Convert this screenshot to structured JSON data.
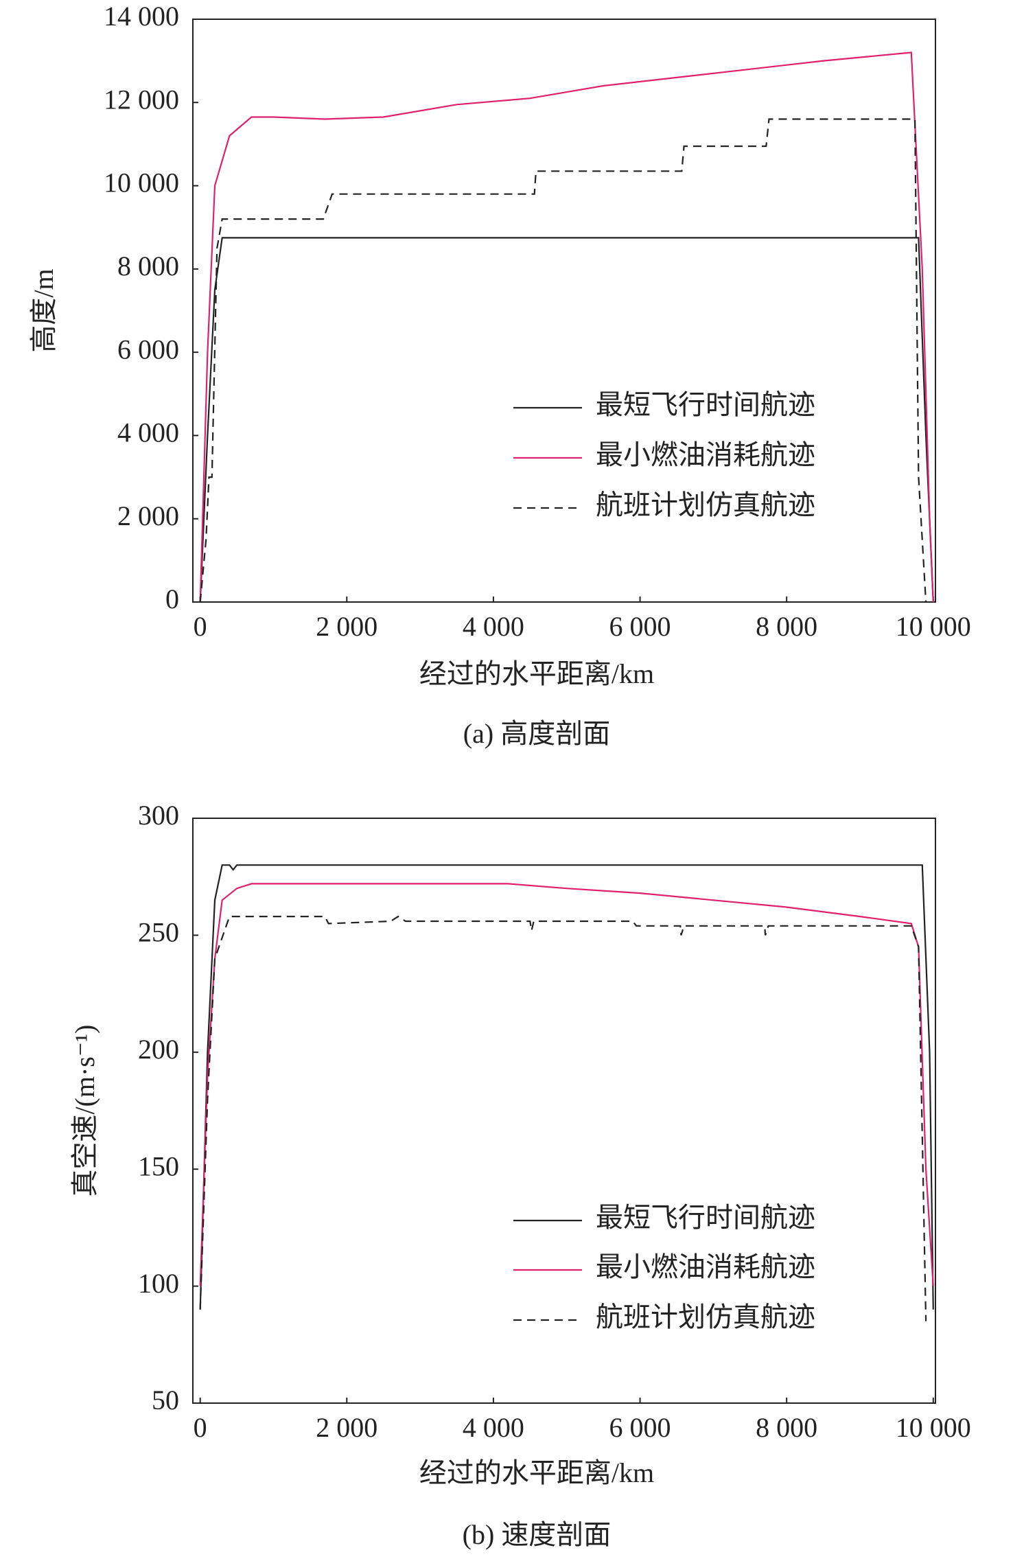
{
  "chart_data": [
    {
      "type": "line",
      "caption": "(a) 高度剖面",
      "x_label": "经过的水平距离/km",
      "y_label": "高度/m",
      "xlim": [
        -100,
        10030
      ],
      "ylim": [
        0,
        14000
      ],
      "xticks": [
        0,
        {
          "value": 2000,
          "label": "2 000"
        },
        {
          "value": 4000,
          "label": "4 000"
        },
        {
          "value": 6000,
          "label": "6 000"
        },
        {
          "value": 8000,
          "label": "8 000"
        },
        {
          "value": 10000,
          "label": "10 000"
        }
      ],
      "yticks": [
        0,
        {
          "value": 2000,
          "label": "2 000"
        },
        {
          "value": 4000,
          "label": "4 000"
        },
        {
          "value": 6000,
          "label": "6 000"
        },
        {
          "value": 8000,
          "label": "8 000"
        },
        {
          "value": 10000,
          "label": "10 000"
        },
        {
          "value": 12000,
          "label": "12 000"
        },
        {
          "value": 14000,
          "label": "14 000"
        }
      ],
      "legend": "lower right",
      "series": [
        {
          "name": "最短飞行时间航迹",
          "color": "#222222",
          "linestyle": "solid",
          "x": [
            0,
            100,
            200,
            300,
            9800,
            9900,
            10000
          ],
          "values": [
            0,
            4000,
            7500,
            8750,
            8750,
            4000,
            0
          ]
        },
        {
          "name": "最小燃油消耗航迹",
          "color": "#e0206a",
          "linestyle": "solid",
          "x": [
            0,
            100,
            200,
            400,
            700,
            1000,
            1700,
            2500,
            3500,
            4500,
            5500,
            6500,
            7500,
            8500,
            9700,
            9850,
            9950,
            10000
          ],
          "values": [
            0,
            6000,
            10000,
            11200,
            11650,
            11650,
            11600,
            11650,
            11950,
            12100,
            12400,
            12600,
            12800,
            13000,
            13200,
            8000,
            2000,
            0
          ]
        },
        {
          "name": "航班计划仿真航迹",
          "color": "#222222",
          "linestyle": "dashed",
          "x": [
            0,
            80,
            120,
            160,
            230,
            300,
            1680,
            1800,
            4560,
            4580,
            6570,
            6600,
            7720,
            7760,
            9750,
            9800,
            9900
          ],
          "values": [
            0,
            1500,
            3000,
            3000,
            8500,
            9200,
            9200,
            9800,
            9800,
            10350,
            10350,
            10950,
            10950,
            11600,
            11600,
            3000,
            0
          ]
        }
      ]
    },
    {
      "type": "line",
      "caption": "(b) 速度剖面",
      "x_label": "经过的水平距离/km",
      "y_label": "真空速/(m·s⁻¹)",
      "xlim": [
        -100,
        10030
      ],
      "ylim": [
        50,
        300
      ],
      "xticks": [
        0,
        {
          "value": 2000,
          "label": "2 000"
        },
        {
          "value": 4000,
          "label": "4 000"
        },
        {
          "value": 6000,
          "label": "6 000"
        },
        {
          "value": 8000,
          "label": "8 000"
        },
        {
          "value": 10000,
          "label": "10 000"
        }
      ],
      "yticks": [
        50,
        100,
        150,
        200,
        250,
        300
      ],
      "legend": "lower right",
      "series": [
        {
          "name": "最短飞行时间航迹",
          "color": "#222222",
          "linestyle": "solid",
          "x": [
            0,
            100,
            200,
            300,
            400,
            450,
            500,
            9850,
            9950,
            10000
          ],
          "values": [
            90,
            200,
            265,
            280,
            280,
            278,
            280,
            280,
            200,
            90
          ]
        },
        {
          "name": "最小燃油消耗航迹",
          "color": "#e0206a",
          "linestyle": "solid",
          "x": [
            0,
            100,
            200,
            300,
            500,
            700,
            4200,
            5000,
            6000,
            7000,
            8000,
            9000,
            9700,
            9800,
            9900,
            10000
          ],
          "values": [
            100,
            190,
            240,
            265,
            270,
            272,
            272,
            270,
            268,
            265,
            262,
            258,
            255,
            245,
            150,
            100
          ]
        },
        {
          "name": "航班计划仿真航迹",
          "color": "#222222",
          "linestyle": "dashed",
          "x": [
            0,
            100,
            200,
            400,
            1700,
            1750,
            2600,
            2700,
            2800,
            4500,
            4520,
            4550,
            5900,
            5950,
            6550,
            6560,
            6600,
            7700,
            7710,
            7750,
            9700,
            9800,
            9900
          ],
          "values": [
            90,
            180,
            240,
            258,
            258,
            255,
            256,
            258,
            256,
            256,
            252,
            256,
            256,
            254,
            254,
            250,
            254,
            254,
            250,
            254,
            254,
            245,
            85
          ]
        }
      ]
    }
  ]
}
